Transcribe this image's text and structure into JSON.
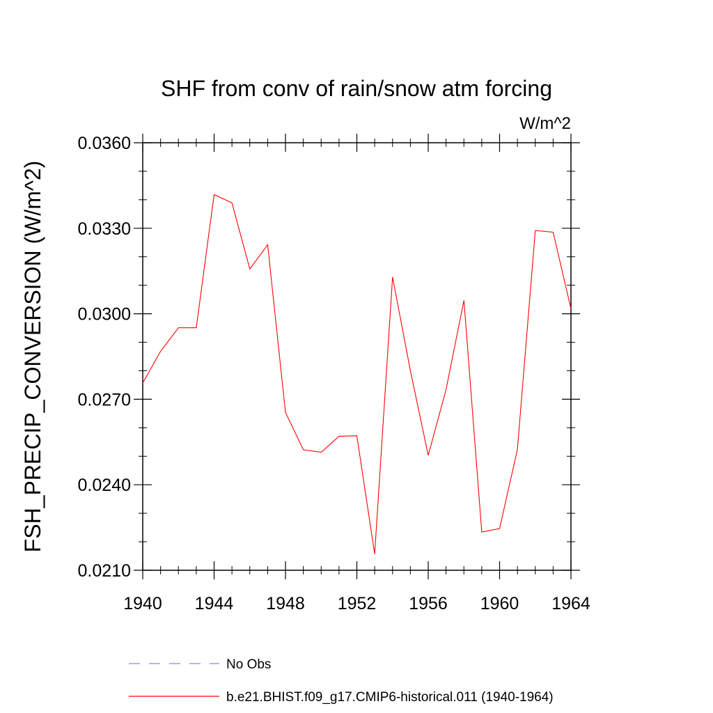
{
  "chart_data": {
    "type": "line",
    "title": "SHF from conv of rain/snow atm forcing",
    "units_label": "W/m^2",
    "ylabel": "FSH_PRECIP_CONVERSION  (W/m^2)",
    "xlabel": "",
    "xlim": [
      1940,
      1964
    ],
    "ylim": [
      0.021,
      0.036
    ],
    "x_ticks": [
      1940,
      1944,
      1948,
      1952,
      1956,
      1960,
      1964
    ],
    "x_tick_labels": [
      "1940",
      "1944",
      "1948",
      "1952",
      "1956",
      "1960",
      "1964"
    ],
    "y_ticks": [
      0.021,
      0.024,
      0.027,
      0.03,
      0.033,
      0.036
    ],
    "y_tick_labels": [
      "0.0210",
      "0.0240",
      "0.0270",
      "0.0300",
      "0.0330",
      "0.0360"
    ],
    "series": [
      {
        "name": "b.e21.BHIST.f09_g17.CMIP6-historical.011 (1940-1964)",
        "color": "#ff0000",
        "x": [
          1940,
          1941,
          1942,
          1943,
          1944,
          1945,
          1946,
          1947,
          1948,
          1949,
          1950,
          1951,
          1952,
          1953,
          1954,
          1955,
          1956,
          1957,
          1958,
          1959,
          1960,
          1961,
          1962,
          1963,
          1964
        ],
        "y": [
          0.02757,
          0.02868,
          0.02951,
          0.02951,
          0.03418,
          0.03389,
          0.03157,
          0.03242,
          0.02654,
          0.02523,
          0.02514,
          0.0257,
          0.02572,
          0.02157,
          0.03129,
          0.028,
          0.02503,
          0.02734,
          0.03047,
          0.02234,
          0.02246,
          0.02524,
          0.03292,
          0.03286,
          0.03017
        ]
      }
    ],
    "legend": [
      {
        "label": "No Obs",
        "color": "#8a8ad0",
        "style": "dashed"
      },
      {
        "label": "b.e21.BHIST.f09_g17.CMIP6-historical.011 (1940-1964)",
        "color": "#ff0000",
        "style": "solid"
      }
    ]
  }
}
